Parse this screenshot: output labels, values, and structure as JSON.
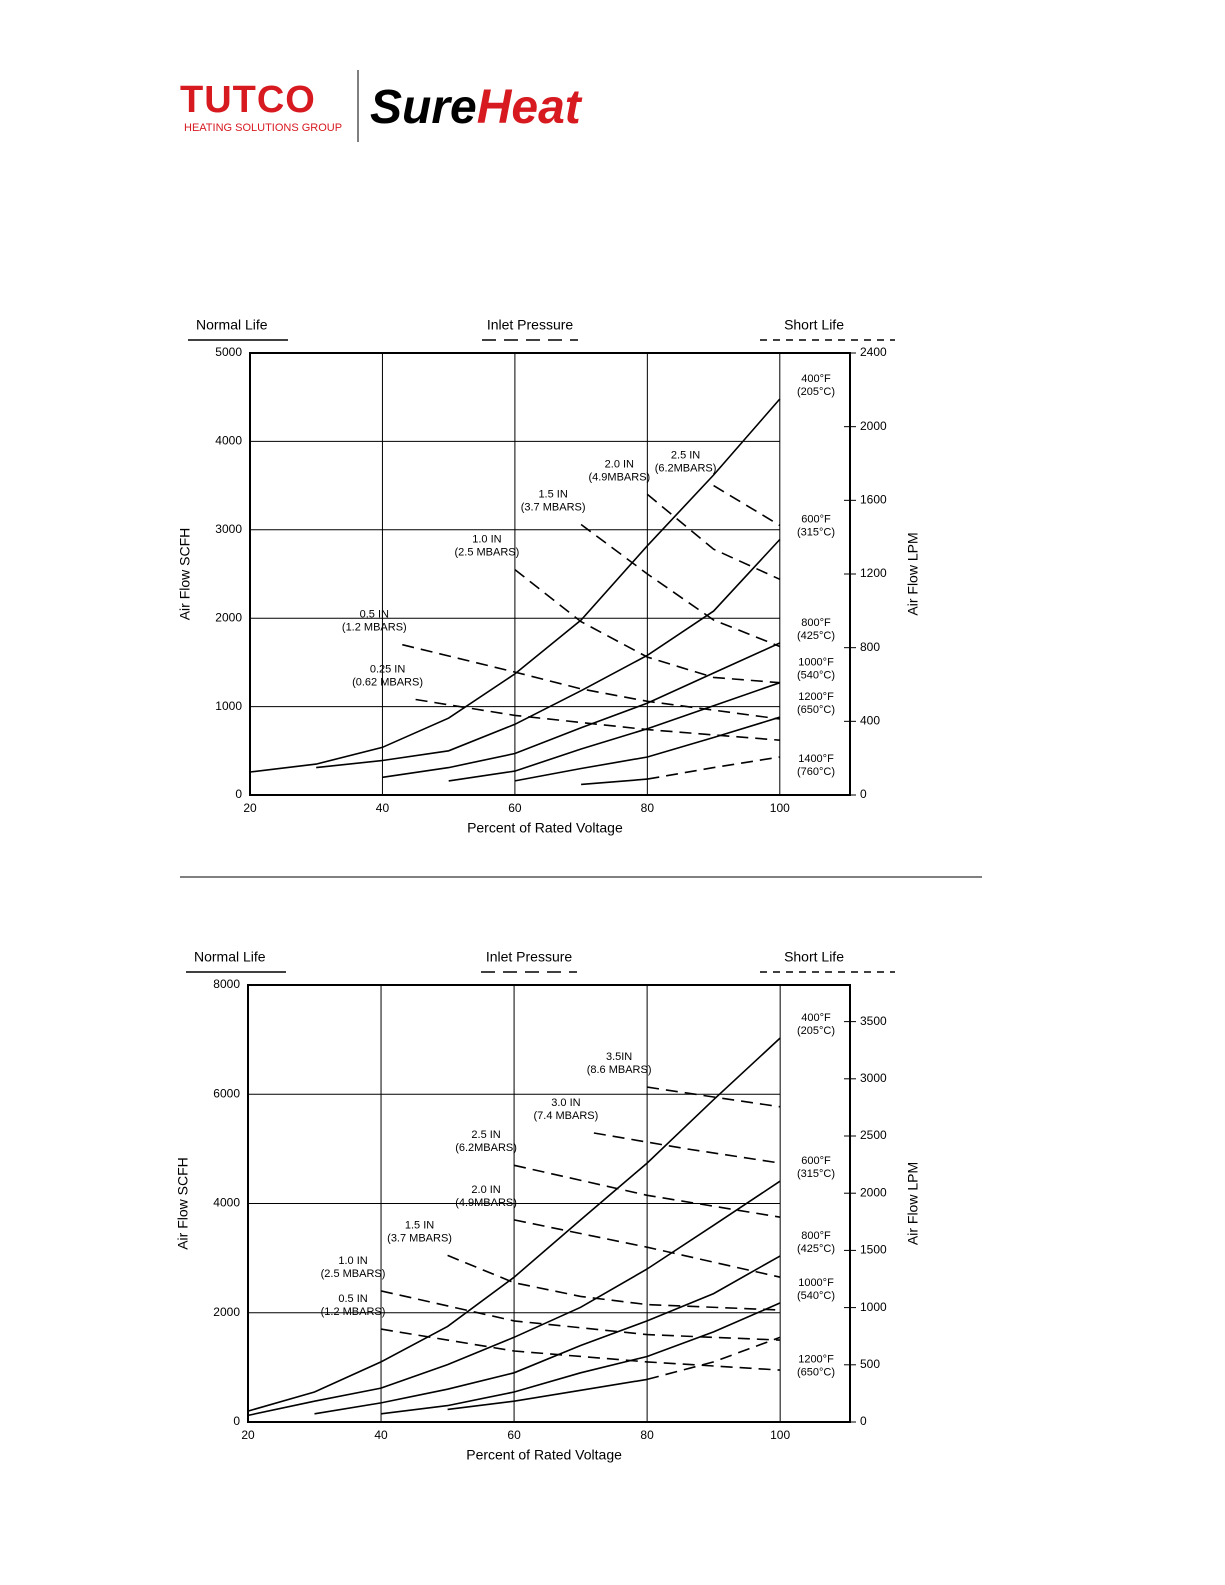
{
  "header": {
    "brand": "TUTCO",
    "tagline": "HEATING SOLUTIONS GROUP",
    "product_a": "Sure",
    "product_b": "Heat"
  },
  "chart_data": [
    {
      "type": "line",
      "legend_normal": "Normal Life",
      "legend_pressure": "Inlet Pressure",
      "legend_short": "Short Life",
      "x_label": "Percent of Rated Voltage",
      "y_label": "Air Flow SCFH",
      "y2_label": "Air Flow LPM",
      "xlim": [
        20,
        110.6
      ],
      "ylim": [
        0,
        5000
      ],
      "y2lim": [
        0,
        2400
      ],
      "xticks": [
        20,
        40,
        60,
        80,
        100
      ],
      "yticks": [
        0,
        1000,
        2000,
        3000,
        4000,
        5000
      ],
      "y2ticks": [
        0,
        400,
        800,
        1200,
        1600,
        2000,
        2400
      ],
      "color": "#000000",
      "series": [
        {
          "name": [
            "400°F",
            "(205°C)"
          ],
          "dashed": false,
          "x": [
            20,
            30,
            40,
            50,
            60,
            70,
            80,
            90,
            100
          ],
          "values": [
            260,
            350,
            540,
            870,
            1370,
            1980,
            2820,
            3620,
            4480
          ]
        },
        {
          "name": [
            "600°F",
            "(315°C)"
          ],
          "dashed": false,
          "x": [
            30,
            40,
            50,
            60,
            70,
            80,
            90,
            100
          ],
          "values": [
            310,
            390,
            500,
            800,
            1180,
            1580,
            2080,
            2890
          ]
        },
        {
          "name": [
            "800°F",
            "(425°C)"
          ],
          "dashed": false,
          "x": [
            40,
            50,
            60,
            70,
            80,
            90,
            100
          ],
          "values": [
            200,
            310,
            470,
            760,
            1040,
            1380,
            1720
          ]
        },
        {
          "name": [
            "1000°F",
            "(540°C)"
          ],
          "dashed": false,
          "x": [
            50,
            60,
            70,
            80,
            90,
            100
          ],
          "values": [
            160,
            270,
            520,
            750,
            1010,
            1270
          ]
        },
        {
          "name": [
            "1200°F",
            "(650°C)"
          ],
          "dashed": false,
          "x": [
            60,
            70,
            80,
            90,
            100
          ],
          "values": [
            160,
            300,
            430,
            650,
            880
          ]
        },
        {
          "name": [
            "1400°F",
            "(760°C)"
          ],
          "dashed": false,
          "x": [
            70,
            80
          ],
          "values": [
            120,
            180
          ]
        },
        {
          "dashed": true,
          "x": [
            80,
            90,
            100
          ],
          "values": [
            180,
            310,
            430
          ]
        },
        {
          "name": [
            "0.25 IN",
            "(0.62 MBARS)"
          ],
          "dashed": true,
          "x": [
            45,
            60,
            80,
            100
          ],
          "values": [
            1080,
            900,
            740,
            620
          ]
        },
        {
          "name": [
            "0.5 IN",
            "(1.2 MBARS)"
          ],
          "dashed": true,
          "x": [
            43,
            60,
            70,
            80,
            100
          ],
          "values": [
            1700,
            1390,
            1200,
            1060,
            860
          ]
        },
        {
          "name": [
            "1.0 IN",
            "(2.5 MBARS)"
          ],
          "dashed": true,
          "x": [
            60,
            70,
            80,
            90,
            100
          ],
          "values": [
            2550,
            1960,
            1560,
            1330,
            1270
          ]
        },
        {
          "name": [
            "1.5  IN",
            "(3.7 MBARS)"
          ],
          "dashed": true,
          "x": [
            70,
            80,
            90,
            100
          ],
          "values": [
            3060,
            2500,
            1980,
            1680
          ]
        },
        {
          "name": [
            "2.0 IN",
            "(4.9MBARS)"
          ],
          "dashed": true,
          "x": [
            80,
            90,
            100
          ],
          "values": [
            3400,
            2780,
            2440
          ]
        },
        {
          "name": [
            "2.5 IN",
            "(6.2MBARS)"
          ],
          "dashed": true,
          "x": [
            90,
            100
          ],
          "values": [
            3500,
            3050
          ]
        }
      ]
    },
    {
      "type": "line",
      "legend_normal": "Normal Life",
      "legend_pressure": "Inlet  Pressure",
      "legend_short": "Short Life",
      "x_label": "Percent of  Rated Voltage",
      "y_label": "Air Flow SCFH",
      "y2_label": "Air Flow LPM",
      "xlim": [
        20,
        110.5
      ],
      "ylim": [
        0,
        8000
      ],
      "y2lim": [
        0,
        3820
      ],
      "xticks": [
        20,
        40,
        60,
        80,
        100
      ],
      "yticks": [
        0,
        2000,
        4000,
        6000,
        8000
      ],
      "y2ticks": [
        0,
        500,
        1000,
        1500,
        2000,
        2500,
        3000,
        3500
      ],
      "color": "#000000",
      "series": [
        {
          "name": [
            "400°F",
            "(205°C)"
          ],
          "dashed": false,
          "x": [
            20,
            30,
            40,
            50,
            60,
            70,
            80,
            90,
            100
          ],
          "values": [
            200,
            550,
            1100,
            1750,
            2650,
            3700,
            4740,
            5900,
            7030
          ]
        },
        {
          "name": [
            "600°F",
            "(315°C)"
          ],
          "dashed": false,
          "x": [
            20,
            30,
            40,
            50,
            60,
            70,
            80,
            90,
            100
          ],
          "values": [
            120,
            380,
            620,
            1050,
            1550,
            2100,
            2800,
            3600,
            4410
          ]
        },
        {
          "name": [
            "800°F",
            "(425°C)"
          ],
          "dashed": false,
          "x": [
            30,
            40,
            50,
            60,
            70,
            80,
            90,
            100
          ],
          "values": [
            150,
            350,
            600,
            900,
            1400,
            1850,
            2350,
            3040
          ]
        },
        {
          "name": [
            "1000°F",
            "(540°C)"
          ],
          "dashed": false,
          "x": [
            40,
            50,
            60,
            70,
            80,
            90,
            100
          ],
          "values": [
            150,
            300,
            550,
            900,
            1200,
            1650,
            2180
          ]
        },
        {
          "name": [
            "1200°F",
            "(650°C)"
          ],
          "dashed": false,
          "x": [
            50,
            60,
            70,
            80
          ],
          "values": [
            230,
            380,
            580,
            780
          ]
        },
        {
          "dashed": true,
          "x": [
            80,
            90,
            100
          ],
          "values": [
            780,
            1100,
            1550
          ]
        },
        {
          "name": [
            "0.5 IN",
            "(1.2 MBARS)"
          ],
          "dashed": true,
          "x": [
            40,
            60,
            80,
            100
          ],
          "values": [
            1700,
            1300,
            1100,
            950
          ]
        },
        {
          "name": [
            "1.0 IN",
            "(2.5 MBARS)"
          ],
          "dashed": true,
          "x": [
            40,
            60,
            80,
            100
          ],
          "values": [
            2400,
            1850,
            1600,
            1500
          ]
        },
        {
          "name": [
            "1.5  IN",
            "(3.7 MBARS)"
          ],
          "dashed": true,
          "x": [
            50,
            60,
            70,
            80,
            100
          ],
          "values": [
            3050,
            2550,
            2300,
            2150,
            2050
          ]
        },
        {
          "name": [
            "2.0 IN",
            "(4.9MBARS)"
          ],
          "dashed": true,
          "x": [
            60,
            80,
            100
          ],
          "values": [
            3700,
            3200,
            2650
          ]
        },
        {
          "name": [
            "2.5 IN",
            "(6.2MBARS)"
          ],
          "dashed": true,
          "x": [
            60,
            80,
            100
          ],
          "values": [
            4700,
            4150,
            3750
          ]
        },
        {
          "name": [
            "3.0 IN",
            "(7.4 MBARS)"
          ],
          "dashed": true,
          "x": [
            72,
            86,
            100
          ],
          "values": [
            5290,
            5000,
            4740
          ]
        },
        {
          "name": [
            "3.5IN",
            "(8.6 MBARS)"
          ],
          "dashed": true,
          "x": [
            80,
            90,
            100
          ],
          "values": [
            6130,
            5950,
            5770
          ]
        }
      ]
    }
  ]
}
